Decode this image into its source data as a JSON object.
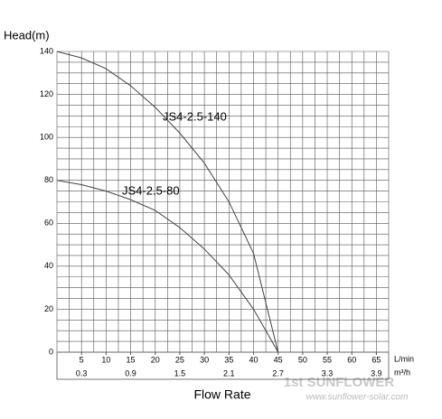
{
  "chart_data": {
    "type": "line",
    "y_label": "Head(m)",
    "x_label": "Flow Rate",
    "x_unit": "L/min",
    "x2_unit": "m³/h",
    "x": [
      0,
      5,
      10,
      15,
      20,
      25,
      30,
      35,
      40,
      45
    ],
    "series": [
      {
        "name": "JS4-2.5-140",
        "color": "#444444",
        "values": [
          140,
          137,
          132,
          124,
          114,
          102,
          88,
          70,
          46,
          0
        ]
      },
      {
        "name": "JS4-2.5-80",
        "color": "#444444",
        "values": [
          80,
          78,
          75,
          71,
          66,
          58,
          48,
          36,
          20,
          0
        ]
      }
    ],
    "xlim": [
      0,
      67.5
    ],
    "xticks": [
      5,
      10,
      15,
      20,
      25,
      30,
      35,
      40,
      45,
      50,
      55,
      60,
      65
    ],
    "x2ticks": [
      {
        "value": 5,
        "label": "0.3"
      },
      {
        "value": 15,
        "label": "0.9"
      },
      {
        "value": 25,
        "label": "1.5"
      },
      {
        "value": 35,
        "label": "2.1"
      },
      {
        "value": 45,
        "label": "2.7"
      },
      {
        "value": 55,
        "label": "3.3"
      },
      {
        "value": 65,
        "label": "3.9"
      }
    ],
    "ylim": [
      0,
      140
    ],
    "yticks": [
      0,
      20,
      40,
      60,
      80,
      100,
      120,
      140
    ],
    "grid": true,
    "grid_step": [
      2.5,
      5
    ],
    "watermark": [
      "1st SUNFLOWER",
      "www.sunflower-solar.com"
    ]
  }
}
